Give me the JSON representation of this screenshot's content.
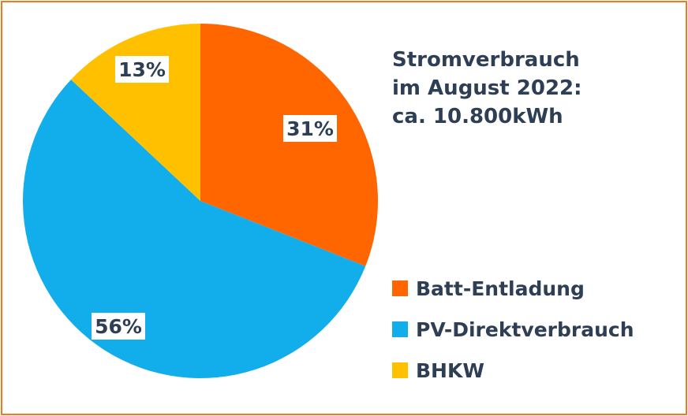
{
  "chart_data": {
    "type": "pie",
    "title": [
      "Stromverbrauch",
      "im August 2022:",
      "ca. 10.800kWh"
    ],
    "start_angle": "top, clockwise",
    "legend_position": "right",
    "slices": [
      {
        "name": "Batt-Entladung",
        "value": 31,
        "label": "31%",
        "color": "#FF6600"
      },
      {
        "name": "PV-Direktverbrauch",
        "value": 56,
        "label": "56%",
        "color": "#12ADEB"
      },
      {
        "name": "BHKW",
        "value": 13,
        "label": "13%",
        "color": "#FFC000"
      }
    ]
  },
  "frame_color": "#F07A1E"
}
